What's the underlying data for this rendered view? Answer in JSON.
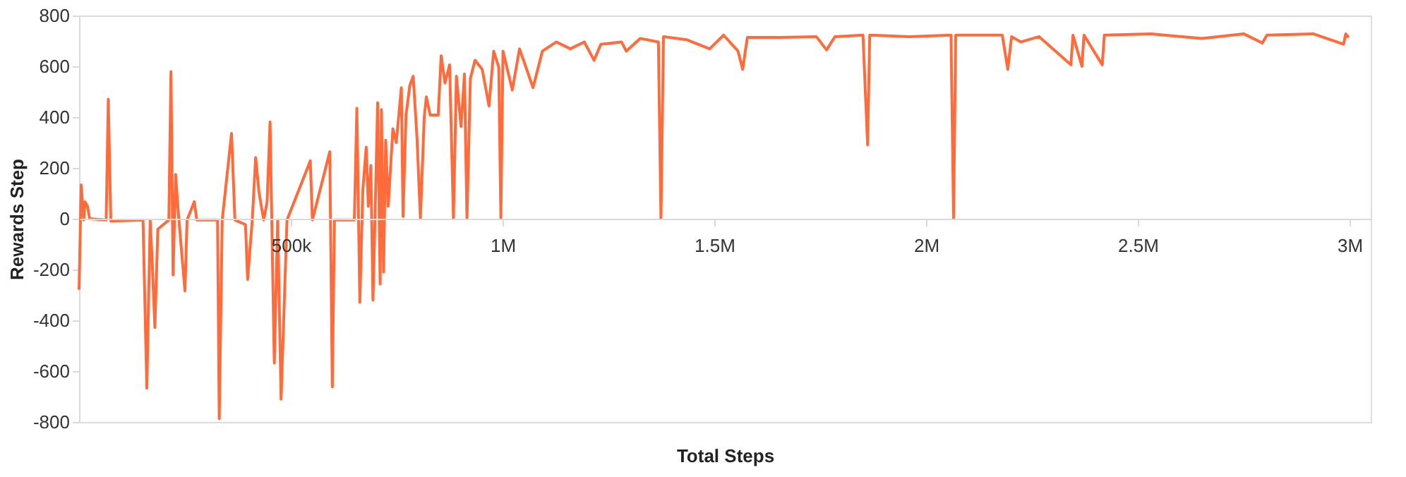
{
  "chart_data": {
    "type": "line",
    "xlabel": "Total Steps",
    "ylabel": "Rewards Step",
    "xlim": [
      0,
      3050000
    ],
    "xticks": [
      {
        "value": 500000,
        "label": "500k"
      },
      {
        "value": 1000000,
        "label": "1M"
      },
      {
        "value": 1500000,
        "label": "1.5M"
      },
      {
        "value": 2000000,
        "label": "2M"
      },
      {
        "value": 2500000,
        "label": "2.5M"
      },
      {
        "value": 3000000,
        "label": "3M"
      }
    ],
    "ylim": [
      -800,
      800
    ],
    "yticks": [
      -800,
      -600,
      -400,
      -200,
      0,
      200,
      400,
      600,
      800
    ],
    "grid": false,
    "line_style": "solid",
    "x": [
      0,
      5000,
      11000,
      14000,
      20000,
      25000,
      64000,
      69000,
      75000,
      151000,
      160000,
      168000,
      173000,
      179000,
      186000,
      212000,
      217000,
      222000,
      228000,
      234000,
      250000,
      255000,
      272000,
      278000,
      327000,
      331000,
      338000,
      360000,
      368000,
      393000,
      398000,
      409000,
      417000,
      425000,
      436000,
      444000,
      451000,
      461000,
      469000,
      477000,
      491000,
      546000,
      551000,
      592000,
      598000,
      603000,
      650000,
      656000,
      663000,
      670000,
      678000,
      683000,
      689000,
      694000,
      700000,
      705000,
      711000,
      714000,
      719000,
      724000,
      730000,
      741000,
      749000,
      755000,
      761000,
      765000,
      772000,
      781000,
      789000,
      798000,
      806000,
      815000,
      820000,
      829000,
      848000,
      855000,
      864000,
      875000,
      884000,
      891000,
      902000,
      910000,
      916000,
      924000,
      935000,
      952000,
      968000,
      979000,
      991000,
      996000,
      1001000,
      1023000,
      1040000,
      1072000,
      1094000,
      1127000,
      1160000,
      1193000,
      1216000,
      1232000,
      1281000,
      1292000,
      1325000,
      1368000,
      1374000,
      1380000,
      1434000,
      1489000,
      1522000,
      1556000,
      1567000,
      1578000,
      1654000,
      1741000,
      1765000,
      1785000,
      1851000,
      1862000,
      1867000,
      1961000,
      2059000,
      2065000,
      2070000,
      2180000,
      2193000,
      2202000,
      2224000,
      2267000,
      2342000,
      2347000,
      2368000,
      2373000,
      2416000,
      2421000,
      2531000,
      2651000,
      2750000,
      2794000,
      2805000,
      2914000,
      2986000,
      2991000,
      2998000
    ],
    "series": [
      {
        "color": "#ff6b3a",
        "values": [
          -279,
          133,
          -5,
          67,
          49,
          0,
          -5,
          471,
          -9,
          -5,
          -667,
          -5,
          -182,
          -428,
          -41,
          -5,
          579,
          -221,
          174,
          31,
          -284,
          -5,
          67,
          -5,
          -5,
          -787,
          -5,
          336,
          -5,
          -23,
          -239,
          -5,
          241,
          102,
          -5,
          67,
          381,
          -568,
          -5,
          -710,
          -5,
          228,
          -5,
          264,
          -662,
          -5,
          -5,
          435,
          -329,
          111,
          282,
          49,
          210,
          -320,
          85,
          457,
          -257,
          430,
          -209,
          309,
          49,
          354,
          300,
          408,
          516,
          9,
          408,
          525,
          561,
          318,
          0,
          399,
          480,
          408,
          408,
          642,
          534,
          606,
          0,
          561,
          363,
          570,
          0,
          552,
          624,
          588,
          444,
          660,
          597,
          0,
          660,
          507,
          669,
          516,
          660,
          696,
          669,
          696,
          624,
          687,
          696,
          660,
          710,
          696,
          0,
          717,
          705,
          669,
          723,
          660,
          588,
          714,
          714,
          717,
          665,
          717,
          723,
          291,
          723,
          717,
          723,
          0,
          723,
          723,
          588,
          717,
          696,
          717,
          606,
          723,
          600,
          723,
          606,
          723,
          728,
          710,
          728,
          692,
          723,
          728,
          687,
          728,
          714
        ]
      }
    ]
  }
}
